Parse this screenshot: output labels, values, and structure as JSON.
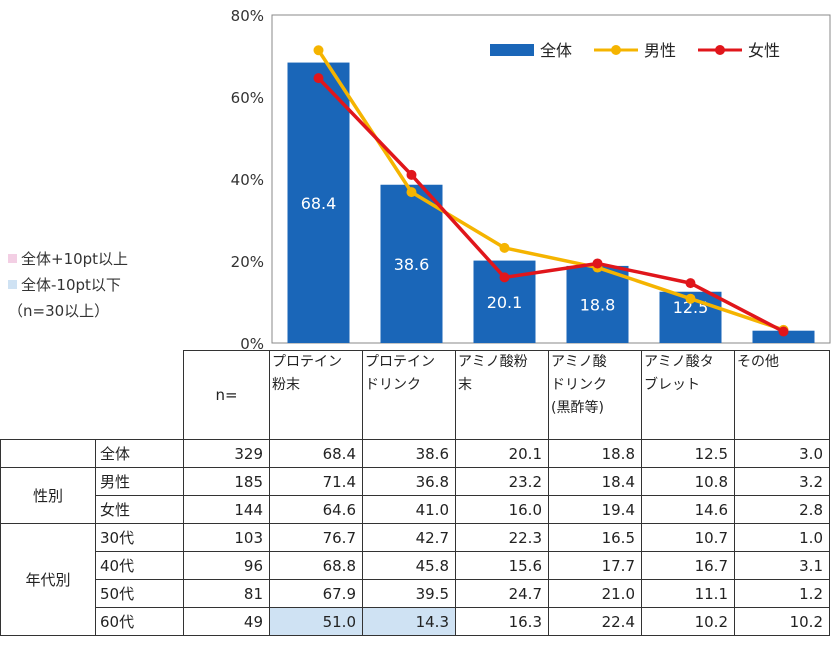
{
  "chart_data": {
    "type": "bar",
    "categories": [
      "プロテイン粉末",
      "プロテインドリンク",
      "アミノ酸粉末",
      "アミノ酸ドリンク(黒酢等)",
      "アミノ酸タブレット",
      "その他"
    ],
    "ylim": [
      0,
      80
    ],
    "yticks": [
      "0%",
      "20%",
      "40%",
      "60%",
      "80%"
    ],
    "ytick_values": [
      0,
      20,
      40,
      60,
      80
    ],
    "series": [
      {
        "name": "全体",
        "kind": "bar",
        "color": "#1a66b8",
        "values": [
          68.4,
          38.6,
          20.1,
          18.8,
          12.5,
          3.0
        ]
      },
      {
        "name": "男性",
        "kind": "line",
        "color": "#f5b400",
        "values": [
          71.4,
          36.8,
          23.2,
          18.4,
          10.8,
          3.2
        ]
      },
      {
        "name": "女性",
        "kind": "line",
        "color": "#e0161b",
        "values": [
          64.6,
          41.0,
          16.0,
          19.4,
          14.6,
          2.8
        ]
      }
    ],
    "bar_labels": [
      "68.4",
      "38.6",
      "20.1",
      "18.8",
      "12.5",
      ""
    ],
    "legend_position": "top-right",
    "grid": false
  },
  "notes": {
    "above": "全体+10pt以上",
    "below": "全体-10pt以下",
    "n_note": "（n=30以上）",
    "above_color": "#f3cfe4",
    "below_color": "#cfe2f3"
  },
  "table": {
    "n_header": "n=",
    "columns": [
      "プロテイン粉末",
      "プロテインドリンク",
      "アミノ酸粉末",
      "アミノ酸ドリンク(黒酢等)",
      "アミノ酸タブレット",
      "その他"
    ],
    "column_lines": [
      [
        "プロテイン",
        "粉末"
      ],
      [
        "プロテイン",
        "ドリンク"
      ],
      [
        "アミノ酸粉",
        "末"
      ],
      [
        "アミノ酸",
        "ドリンク",
        "(黒酢等)"
      ],
      [
        "アミノ酸タ",
        "ブレット"
      ],
      [
        "その他"
      ]
    ],
    "groups": [
      {
        "label": "",
        "rows": [
          {
            "label": "全体",
            "n": "329",
            "values": [
              "68.4",
              "38.6",
              "20.1",
              "18.8",
              "12.5",
              "3.0"
            ],
            "highlight": []
          }
        ]
      },
      {
        "label": "性別",
        "rows": [
          {
            "label": "男性",
            "n": "185",
            "values": [
              "71.4",
              "36.8",
              "23.2",
              "18.4",
              "10.8",
              "3.2"
            ],
            "highlight": []
          },
          {
            "label": "女性",
            "n": "144",
            "values": [
              "64.6",
              "41.0",
              "16.0",
              "19.4",
              "14.6",
              "2.8"
            ],
            "highlight": []
          }
        ]
      },
      {
        "label": "年代別",
        "rows": [
          {
            "label": "30代",
            "n": "103",
            "values": [
              "76.7",
              "42.7",
              "22.3",
              "16.5",
              "10.7",
              "1.0"
            ],
            "highlight": []
          },
          {
            "label": "40代",
            "n": "96",
            "values": [
              "68.8",
              "45.8",
              "15.6",
              "17.7",
              "16.7",
              "3.1"
            ],
            "highlight": []
          },
          {
            "label": "50代",
            "n": "81",
            "values": [
              "67.9",
              "39.5",
              "24.7",
              "21.0",
              "11.1",
              "1.2"
            ],
            "highlight": []
          },
          {
            "label": "60代",
            "n": "49",
            "values": [
              "51.0",
              "14.3",
              "16.3",
              "22.4",
              "10.2",
              "10.2"
            ],
            "highlight": [
              0,
              1
            ]
          }
        ]
      }
    ]
  }
}
